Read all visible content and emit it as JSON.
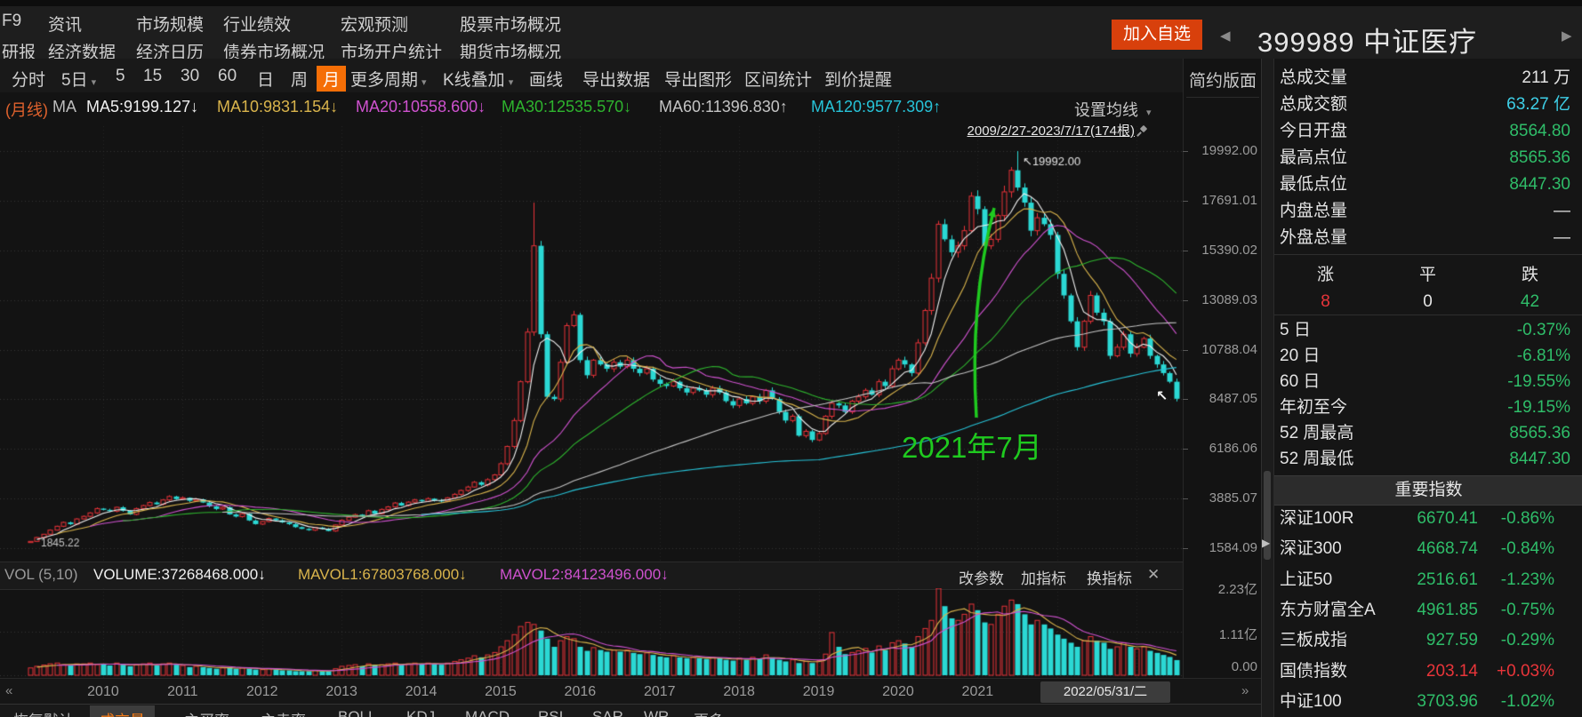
{
  "colors": {
    "accent": "#f56e06",
    "btn_red": "#d8400c",
    "up": "#e83339",
    "down": "#2bd8d4",
    "red_text": "#e9353a",
    "green_text": "#2fbd69",
    "cyan_text": "#3ed0e8",
    "white_text": "#e4e4e4",
    "month_label": "#e0622d",
    "ma5": "#f0f0f0",
    "ma10": "#d9b44c",
    "ma20": "#cf52cf",
    "ma30": "#2eb42e",
    "ma60": "#c4c4c4",
    "ma120": "#27c3d8",
    "annotation_green": "#1fc91f",
    "axis_text": "#9b9b9b",
    "grid": "#343434"
  },
  "top": {
    "menu_rows": [
      [
        "F9",
        "资讯",
        "市场规模",
        "行业绩效",
        "宏观预测",
        "股票市场概况"
      ],
      [
        "研报",
        "经济数据",
        "经济日历",
        "债券市场概况",
        "市场开户统计",
        "期货市场概况"
      ]
    ],
    "add_watchlist": "加入自选",
    "prev_icon": "◀",
    "next_icon": "▶",
    "symbol": "399989",
    "name": "中证医疗"
  },
  "toolbar": {
    "items": [
      {
        "label": "分时"
      },
      {
        "label": "5日",
        "arrow": true
      },
      {
        "label": "5"
      },
      {
        "label": "15"
      },
      {
        "label": "30"
      },
      {
        "label": "60"
      },
      {
        "label": "日"
      },
      {
        "label": "周"
      },
      {
        "label": "月",
        "active": true
      },
      {
        "label": "更多周期",
        "arrow": true
      },
      {
        "label": "K线叠加",
        "arrow": true
      },
      {
        "label": "画线"
      },
      {
        "label": "导出数据"
      },
      {
        "label": "导出图形"
      },
      {
        "label": "区间统计"
      },
      {
        "label": "到价提醒"
      }
    ],
    "simple_layout": "简约版面"
  },
  "ma_bar": {
    "prefix": "(月线)",
    "label": "MA",
    "items": [
      {
        "text": "MA5:9199.127↓",
        "color_key": "ma5"
      },
      {
        "text": "MA10:9831.154↓",
        "color_key": "ma10"
      },
      {
        "text": "MA20:10558.600↓",
        "color_key": "ma20"
      },
      {
        "text": "MA30:12535.570↓",
        "color_key": "ma30"
      },
      {
        "text": "MA60:11396.830↑",
        "color_key": "ma60"
      },
      {
        "text": "MA120:9577.309↑",
        "color_key": "ma120"
      }
    ],
    "ma_settings": "设置均线",
    "range_label": "2009/2/27-2023/7/17(174根)"
  },
  "annotations": {
    "peak_prefix": "↖",
    "peak_label": "19992.00",
    "start_label": "1845.22",
    "event_label": "2021年7月",
    "cursor_icon": "↖"
  },
  "price_axis": [
    "19992.00",
    "17691.01",
    "15390.02",
    "13089.03",
    "10788.04",
    "8487.05",
    "6186.06",
    "3885.07",
    "1584.09"
  ],
  "volume_axis": [
    "2.23亿",
    "1.11亿",
    "0.00"
  ],
  "x_axis": {
    "years": [
      "2010",
      "2011",
      "2012",
      "2013",
      "2014",
      "2015",
      "2016",
      "2017",
      "2018",
      "2019",
      "2020",
      "2021"
    ],
    "date_box": "2022/05/31/二",
    "left_icon": "«",
    "right_icon": "»"
  },
  "vol_bar": {
    "label": "VOL (5,10)",
    "items": [
      {
        "text": "VOLUME:37268468.000↓",
        "color_key": "ma5"
      },
      {
        "text": "MAVOL1:67803768.000↓",
        "color_key": "ma10"
      },
      {
        "text": "MAVOL2:84123496.000↓",
        "color_key": "ma20"
      }
    ],
    "actions": [
      "改参数",
      "加指标",
      "换指标"
    ],
    "close_icon": "✕"
  },
  "bottom_tabs": {
    "items": [
      "恢复默认",
      "成交量",
      "主买率",
      "主卖率",
      "BOLL",
      "KDJ",
      "MACD",
      "RSI",
      "SAR",
      "WR",
      "更多"
    ],
    "active": "成交量"
  },
  "right_panel": {
    "stats": [
      {
        "label": "总成交量",
        "value": "211 万",
        "color": "white"
      },
      {
        "label": "总成交额",
        "value": "63.27 亿",
        "color": "cyan"
      },
      {
        "label": "今日开盘",
        "value": "8564.80",
        "color": "green"
      },
      {
        "label": "最高点位",
        "value": "8565.36",
        "color": "green"
      },
      {
        "label": "最低点位",
        "value": "8447.30",
        "color": "green"
      },
      {
        "label": "内盘总量",
        "value": "—",
        "color": "white"
      },
      {
        "label": "外盘总量",
        "value": "—",
        "color": "white"
      }
    ],
    "updown": {
      "headers": [
        "涨",
        "平",
        "跌"
      ],
      "values": [
        {
          "text": "8",
          "color": "red"
        },
        {
          "text": "0",
          "color": "white"
        },
        {
          "text": "42",
          "color": "green"
        }
      ]
    },
    "periods": [
      {
        "label": "5 日",
        "value": "-0.37%"
      },
      {
        "label": "20 日",
        "value": "-6.81%"
      },
      {
        "label": "60 日",
        "value": "-19.55%"
      },
      {
        "label": "年初至今",
        "value": "-19.15%"
      },
      {
        "label": "52 周最高",
        "value": "8565.36"
      },
      {
        "label": "52 周最低",
        "value": "8447.30"
      }
    ],
    "index_header": "重要指数",
    "indices": [
      {
        "name": "深证100R",
        "value": "6670.41",
        "pct": "-0.86%",
        "dir": "down"
      },
      {
        "name": "深证300",
        "value": "4668.74",
        "pct": "-0.84%",
        "dir": "down"
      },
      {
        "name": "上证50",
        "value": "2516.61",
        "pct": "-1.23%",
        "dir": "down"
      },
      {
        "name": "东方财富全A",
        "value": "4961.85",
        "pct": "-0.75%",
        "dir": "down"
      },
      {
        "name": "三板成指",
        "value": "927.59",
        "pct": "-0.29%",
        "dir": "down"
      },
      {
        "name": "国债指数",
        "value": "203.14",
        "pct": "+0.03%",
        "dir": "up"
      },
      {
        "name": "中证100",
        "value": "3703.96",
        "pct": "-1.02%",
        "dir": "down"
      }
    ]
  },
  "chart_data": {
    "type": "candlestick",
    "symbol": "399989",
    "index_name": "中证医疗",
    "period": "月线",
    "date_range": "2009/2/27-2023/7/17",
    "bar_count": 174,
    "start_month": "2009-02",
    "first_open": 1845.22,
    "price_gridlines": [
      19992.0,
      17691.01,
      15390.02,
      13089.03,
      10788.04,
      8487.05,
      6186.06,
      3885.07,
      1584.09
    ],
    "volume_gridlines": [
      223000000,
      111500000,
      0
    ],
    "peak": {
      "date": "2021-07",
      "high": 19992.0
    },
    "start": {
      "date": "2009-02",
      "low": 1845.22
    },
    "high_overrides": {
      "76": 17600,
      "149": 19992.0
    },
    "low_overrides": {
      "0": 1845.22
    },
    "closes": [
      1900,
      2080,
      2230,
      2420,
      2600,
      2780,
      2700,
      2940,
      3060,
      3220,
      3420,
      3360,
      3300,
      3480,
      3320,
      3150,
      3420,
      3560,
      3700,
      3620,
      3820,
      3980,
      3860,
      3920,
      3780,
      3850,
      3700,
      3520,
      3400,
      3480,
      3150,
      3050,
      3180,
      2870,
      2700,
      2820,
      2960,
      2880,
      2780,
      2700,
      2560,
      2480,
      2420,
      2540,
      2480,
      2380,
      2660,
      2880,
      3020,
      3140,
      3060,
      3320,
      3180,
      3380,
      3500,
      3680,
      3560,
      3720,
      3820,
      3760,
      3880,
      3800,
      3760,
      3920,
      4080,
      4260,
      4420,
      4640,
      4520,
      4760,
      4980,
      5500,
      6300,
      7500,
      9300,
      11600,
      15600,
      11500,
      8600,
      8500,
      10200,
      11900,
      12400,
      10300,
      9600,
      10300,
      10100,
      9900,
      10200,
      10000,
      10300,
      9900,
      9700,
      9900,
      9400,
      9200,
      9100,
      9300,
      9000,
      8800,
      9000,
      8900,
      8700,
      9000,
      8800,
      8400,
      8200,
      8500,
      8300,
      8600,
      8400,
      8900,
      8500,
      7900,
      7500,
      7700,
      6800,
      7000,
      6600,
      6900,
      7700,
      8300,
      8200,
      7900,
      8400,
      8600,
      8900,
      8700,
      9300,
      9100,
      9900,
      10300,
      10100,
      9700,
      11100,
      12600,
      14100,
      16600,
      15900,
      15300,
      15600,
      16300,
      17900,
      17300,
      15600,
      15900,
      17000,
      18100,
      19100,
      18300,
      17600,
      16300,
      16900,
      16600,
      16100,
      14300,
      13300,
      12100,
      10900,
      12100,
      13300,
      12500,
      12100,
      10500,
      10900,
      11500,
      10600,
      10900,
      11300,
      10500,
      10100,
      9700,
      9300,
      8510
    ],
    "volumes_millions": [
      18,
      22,
      25,
      28,
      30,
      26,
      24,
      28,
      28,
      30,
      26,
      28,
      24,
      30,
      26,
      22,
      26,
      28,
      30,
      24,
      28,
      30,
      26,
      24,
      20,
      22,
      20,
      18,
      16,
      18,
      20,
      16,
      18,
      16,
      14,
      14,
      16,
      14,
      12,
      12,
      10,
      10,
      10,
      12,
      10,
      10,
      16,
      22,
      24,
      26,
      22,
      28,
      24,
      26,
      28,
      30,
      26,
      28,
      30,
      28,
      30,
      28,
      26,
      30,
      34,
      38,
      42,
      48,
      44,
      50,
      56,
      70,
      85,
      100,
      120,
      130,
      125,
      110,
      90,
      70,
      85,
      95,
      90,
      70,
      60,
      68,
      62,
      58,
      62,
      58,
      62,
      55,
      52,
      55,
      50,
      46,
      44,
      48,
      44,
      42,
      44,
      42,
      40,
      44,
      42,
      38,
      36,
      42,
      38,
      44,
      40,
      50,
      44,
      38,
      34,
      38,
      30,
      34,
      30,
      36,
      52,
      105,
      70,
      52,
      56,
      60,
      66,
      56,
      72,
      62,
      80,
      85,
      78,
      70,
      95,
      115,
      135,
      223,
      170,
      140,
      135,
      150,
      175,
      160,
      130,
      125,
      150,
      170,
      185,
      175,
      150,
      125,
      135,
      125,
      115,
      100,
      90,
      80,
      70,
      85,
      95,
      85,
      80,
      65,
      70,
      80,
      70,
      65,
      70,
      60,
      55,
      50,
      45,
      37.27
    ]
  }
}
